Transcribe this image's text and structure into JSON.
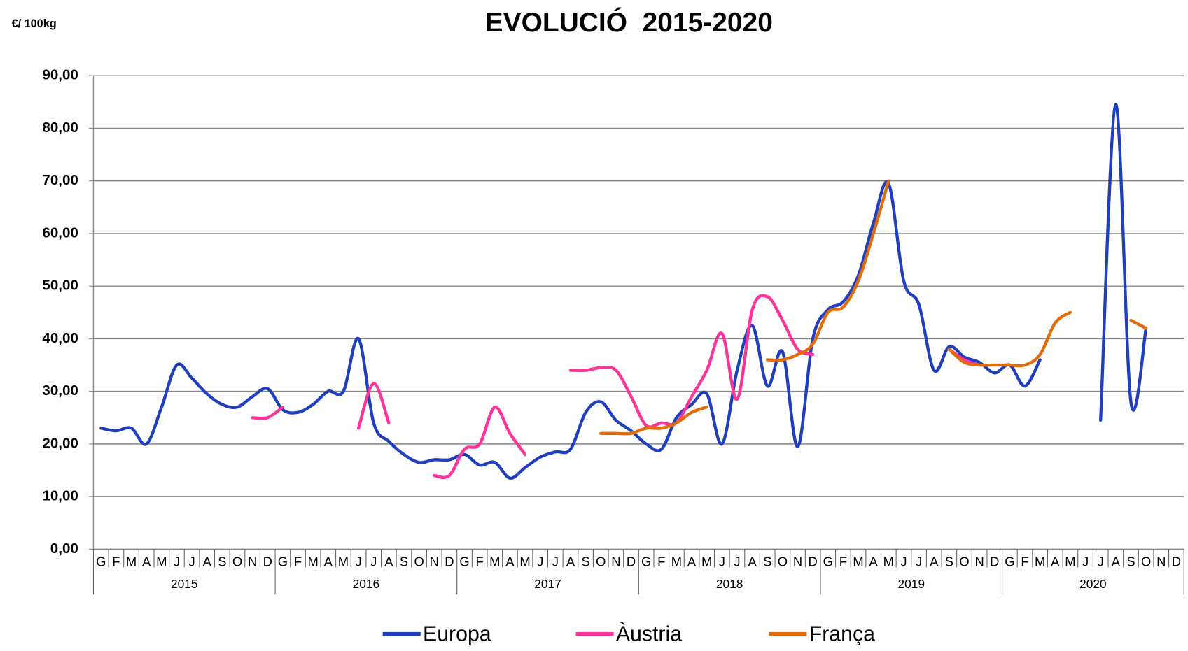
{
  "chart_data": {
    "type": "line",
    "title": "EVOLUCIÓ  2015-2020",
    "y_label": "€/ 100kg",
    "categories": [
      "G",
      "F",
      "M",
      "A",
      "M",
      "J",
      "J",
      "A",
      "S",
      "O",
      "N",
      "D",
      "G",
      "F",
      "M",
      "A",
      "M",
      "J",
      "J",
      "A",
      "S",
      "O",
      "N",
      "D",
      "G",
      "F",
      "M",
      "A",
      "M",
      "J",
      "J",
      "A",
      "S",
      "O",
      "N",
      "D",
      "G",
      "F",
      "M",
      "A",
      "M",
      "J",
      "J",
      "A",
      "S",
      "O",
      "N",
      "D",
      "G",
      "F",
      "M",
      "A",
      "M",
      "J",
      "J",
      "A",
      "S",
      "O",
      "N",
      "D",
      "G",
      "F",
      "M",
      "A",
      "M",
      "J",
      "J",
      "A",
      "S",
      "O",
      "N",
      "D"
    ],
    "years": [
      "2015",
      "2016",
      "2017",
      "2018",
      "2019",
      "2020"
    ],
    "series": [
      {
        "name": "Europa",
        "color": "#1f3fbf",
        "values": [
          23,
          22.5,
          23,
          20,
          27,
          35,
          32.5,
          29.5,
          27.5,
          27,
          29,
          30.5,
          26.5,
          26,
          27.5,
          30,
          30,
          40,
          24,
          20.5,
          18,
          16.5,
          17,
          17,
          18,
          16,
          16.5,
          13.5,
          15.5,
          17.5,
          18.5,
          19,
          26,
          28,
          24.5,
          22.5,
          20,
          19,
          25,
          27.5,
          29.5,
          20,
          34,
          42.5,
          31,
          37.5,
          19.5,
          40,
          45.5,
          47,
          52,
          62,
          69.5,
          51,
          46.5,
          34,
          38.5,
          36.5,
          35.5,
          33.5,
          35,
          31,
          36,
          null,
          null,
          null,
          24.5,
          84.5,
          28,
          42,
          null,
          null
        ]
      },
      {
        "name": "Àustria",
        "color": "#ff3399",
        "values": [
          null,
          null,
          null,
          null,
          null,
          null,
          null,
          null,
          null,
          null,
          25,
          25,
          27,
          null,
          null,
          null,
          null,
          23,
          31.5,
          24,
          null,
          null,
          14,
          14,
          19,
          20,
          27,
          22,
          18,
          null,
          null,
          34,
          34,
          34.5,
          34,
          29,
          23.5,
          24,
          24,
          29,
          34,
          41,
          28.5,
          45.5,
          48,
          43.5,
          38,
          37,
          null,
          null,
          null,
          null,
          null,
          null,
          null,
          null,
          38,
          36,
          35,
          null,
          null,
          null,
          null,
          null,
          null,
          null,
          null,
          null,
          null,
          null,
          null,
          null
        ]
      },
      {
        "name": "França",
        "color": "#e36c0a",
        "values": [
          null,
          null,
          null,
          null,
          null,
          null,
          null,
          null,
          null,
          null,
          null,
          null,
          null,
          null,
          null,
          null,
          null,
          null,
          null,
          null,
          null,
          null,
          null,
          null,
          null,
          null,
          null,
          null,
          null,
          null,
          null,
          null,
          null,
          22,
          22,
          22,
          23,
          23,
          24,
          26,
          27,
          null,
          null,
          null,
          36,
          36,
          37,
          39,
          45,
          46,
          51,
          60,
          70,
          null,
          null,
          null,
          38,
          35.5,
          35,
          35,
          35,
          35,
          37,
          43,
          45,
          null,
          null,
          null,
          43.5,
          42,
          null,
          null
        ]
      }
    ],
    "ylim": [
      0,
      90
    ],
    "yticks": [
      {
        "value": 0,
        "label": "0,00"
      },
      {
        "value": 10,
        "label": "10,00"
      },
      {
        "value": 20,
        "label": "20,00"
      },
      {
        "value": 30,
        "label": "30,00"
      },
      {
        "value": 40,
        "label": "40,00"
      },
      {
        "value": 50,
        "label": "50,00"
      },
      {
        "value": 60,
        "label": "60,00"
      },
      {
        "value": 70,
        "label": "70,00"
      },
      {
        "value": 80,
        "label": "80,00"
      },
      {
        "value": 90,
        "label": "90,00"
      }
    ],
    "grid": true,
    "legend": "bottom"
  }
}
